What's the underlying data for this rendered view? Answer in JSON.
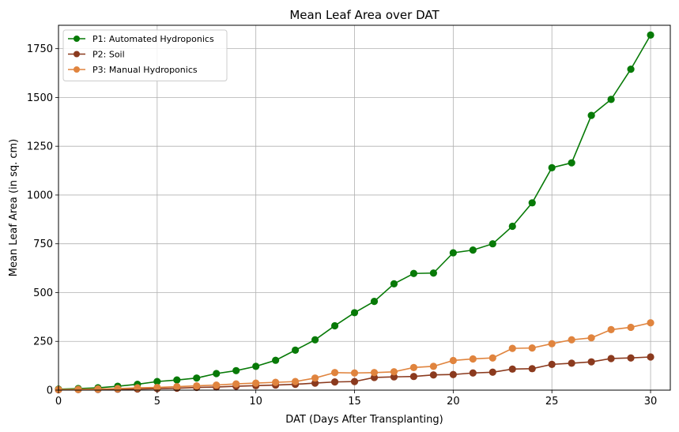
{
  "chart_data": {
    "type": "line",
    "title": "Mean Leaf Area over DAT",
    "xlabel": "DAT (Days After Transplanting)",
    "ylabel": "Mean Leaf Area (in sq. cm)",
    "xlim": [
      0,
      31
    ],
    "ylim": [
      0,
      1870
    ],
    "xticks": [
      0,
      5,
      10,
      15,
      20,
      25,
      30
    ],
    "yticks": [
      0,
      250,
      500,
      750,
      1000,
      1250,
      1500,
      1750
    ],
    "grid": true,
    "legend_position": "top-left",
    "x": [
      0,
      1,
      2,
      3,
      4,
      5,
      6,
      7,
      8,
      9,
      10,
      11,
      12,
      13,
      14,
      15,
      16,
      17,
      18,
      19,
      20,
      21,
      22,
      23,
      24,
      25,
      26,
      27,
      28,
      29,
      30
    ],
    "series": [
      {
        "name": "P1: Automated Hydroponics",
        "color": "#077a07",
        "values": [
          5,
          8,
          12,
          20,
          30,
          44,
          52,
          62,
          85,
          100,
          122,
          153,
          205,
          258,
          330,
          397,
          455,
          545,
          598,
          600,
          704,
          718,
          750,
          840,
          960,
          1140,
          1165,
          1408,
          1490,
          1645,
          1820
        ]
      },
      {
        "name": "P2: Soil",
        "color": "#8b3a1e",
        "values": [
          2,
          3,
          4,
          5,
          6,
          8,
          10,
          14,
          16,
          20,
          23,
          26,
          30,
          36,
          42,
          44,
          65,
          68,
          70,
          78,
          80,
          88,
          92,
          108,
          110,
          132,
          138,
          145,
          162,
          165,
          170
        ]
      },
      {
        "name": "P3: Manual Hydroponics",
        "color": "#e0843e",
        "values": [
          3,
          4,
          6,
          8,
          12,
          14,
          18,
          22,
          26,
          32,
          36,
          40,
          44,
          62,
          90,
          88,
          90,
          94,
          116,
          122,
          152,
          160,
          165,
          214,
          216,
          238,
          258,
          268,
          310,
          322,
          345
        ]
      }
    ]
  }
}
